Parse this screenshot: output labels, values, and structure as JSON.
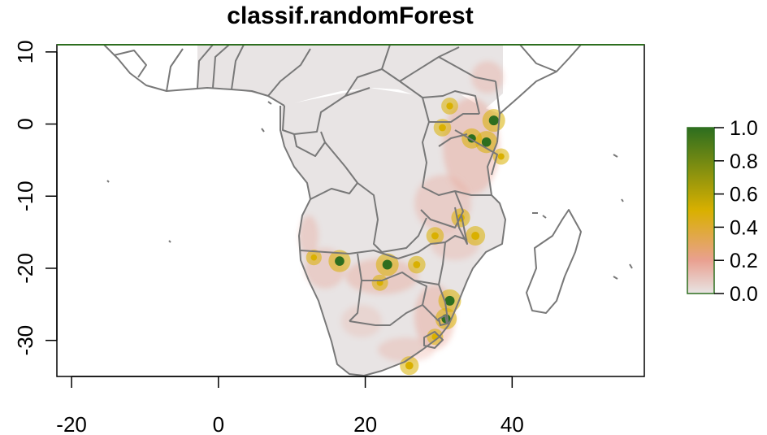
{
  "map": {
    "title": "classif.randomForest",
    "x_ticks": [
      -20,
      0,
      20,
      40
    ],
    "y_ticks": [
      10,
      0,
      -10,
      -20,
      -30
    ],
    "xlim": [
      -22,
      58
    ],
    "ylim": [
      -35,
      11
    ],
    "raster_extent": {
      "lon_min": -2,
      "lon_max": 40,
      "lat_max": 11
    },
    "colors": {
      "background": "#e8e4e4",
      "low": "#e9a090",
      "mid": "#d9b000",
      "high": "#2d6e1f",
      "border": "#787878"
    }
  },
  "legend": {
    "labels": [
      "1.0",
      "0.8",
      "0.6",
      "0.4",
      "0.2",
      "0.0"
    ],
    "values": [
      1.0,
      0.8,
      0.6,
      0.4,
      0.2,
      0.0
    ],
    "gradient": [
      "#e8e4e4",
      "#e9a090",
      "#d9b000",
      "#2d6e1f"
    ]
  },
  "hotspots": [
    {
      "lon": 37.5,
      "lat": 0.5,
      "value": 1.0
    },
    {
      "lon": 36.5,
      "lat": -2.5,
      "value": 0.95
    },
    {
      "lon": 34.5,
      "lat": -2.0,
      "value": 0.8
    },
    {
      "lon": 30.5,
      "lat": -0.5,
      "value": 0.6
    },
    {
      "lon": 31.5,
      "lat": 2.5,
      "value": 0.55
    },
    {
      "lon": 38.5,
      "lat": -4.5,
      "value": 0.5
    },
    {
      "lon": 33.0,
      "lat": -13.0,
      "value": 0.7
    },
    {
      "lon": 29.5,
      "lat": -15.5,
      "value": 0.6
    },
    {
      "lon": 35.0,
      "lat": -15.5,
      "value": 0.75
    },
    {
      "lon": 16.5,
      "lat": -19.0,
      "value": 0.95
    },
    {
      "lon": 23.0,
      "lat": -19.5,
      "value": 1.0
    },
    {
      "lon": 27.0,
      "lat": -19.5,
      "value": 0.6
    },
    {
      "lon": 31.5,
      "lat": -24.5,
      "value": 1.0
    },
    {
      "lon": 31.0,
      "lat": -27.0,
      "value": 0.9
    },
    {
      "lon": 29.5,
      "lat": -29.5,
      "value": 0.5
    },
    {
      "lon": 26.0,
      "lat": -33.5,
      "value": 0.7
    },
    {
      "lon": 22.0,
      "lat": -22.0,
      "value": 0.5
    },
    {
      "lon": 13.0,
      "lat": -18.5,
      "value": 0.45
    }
  ]
}
